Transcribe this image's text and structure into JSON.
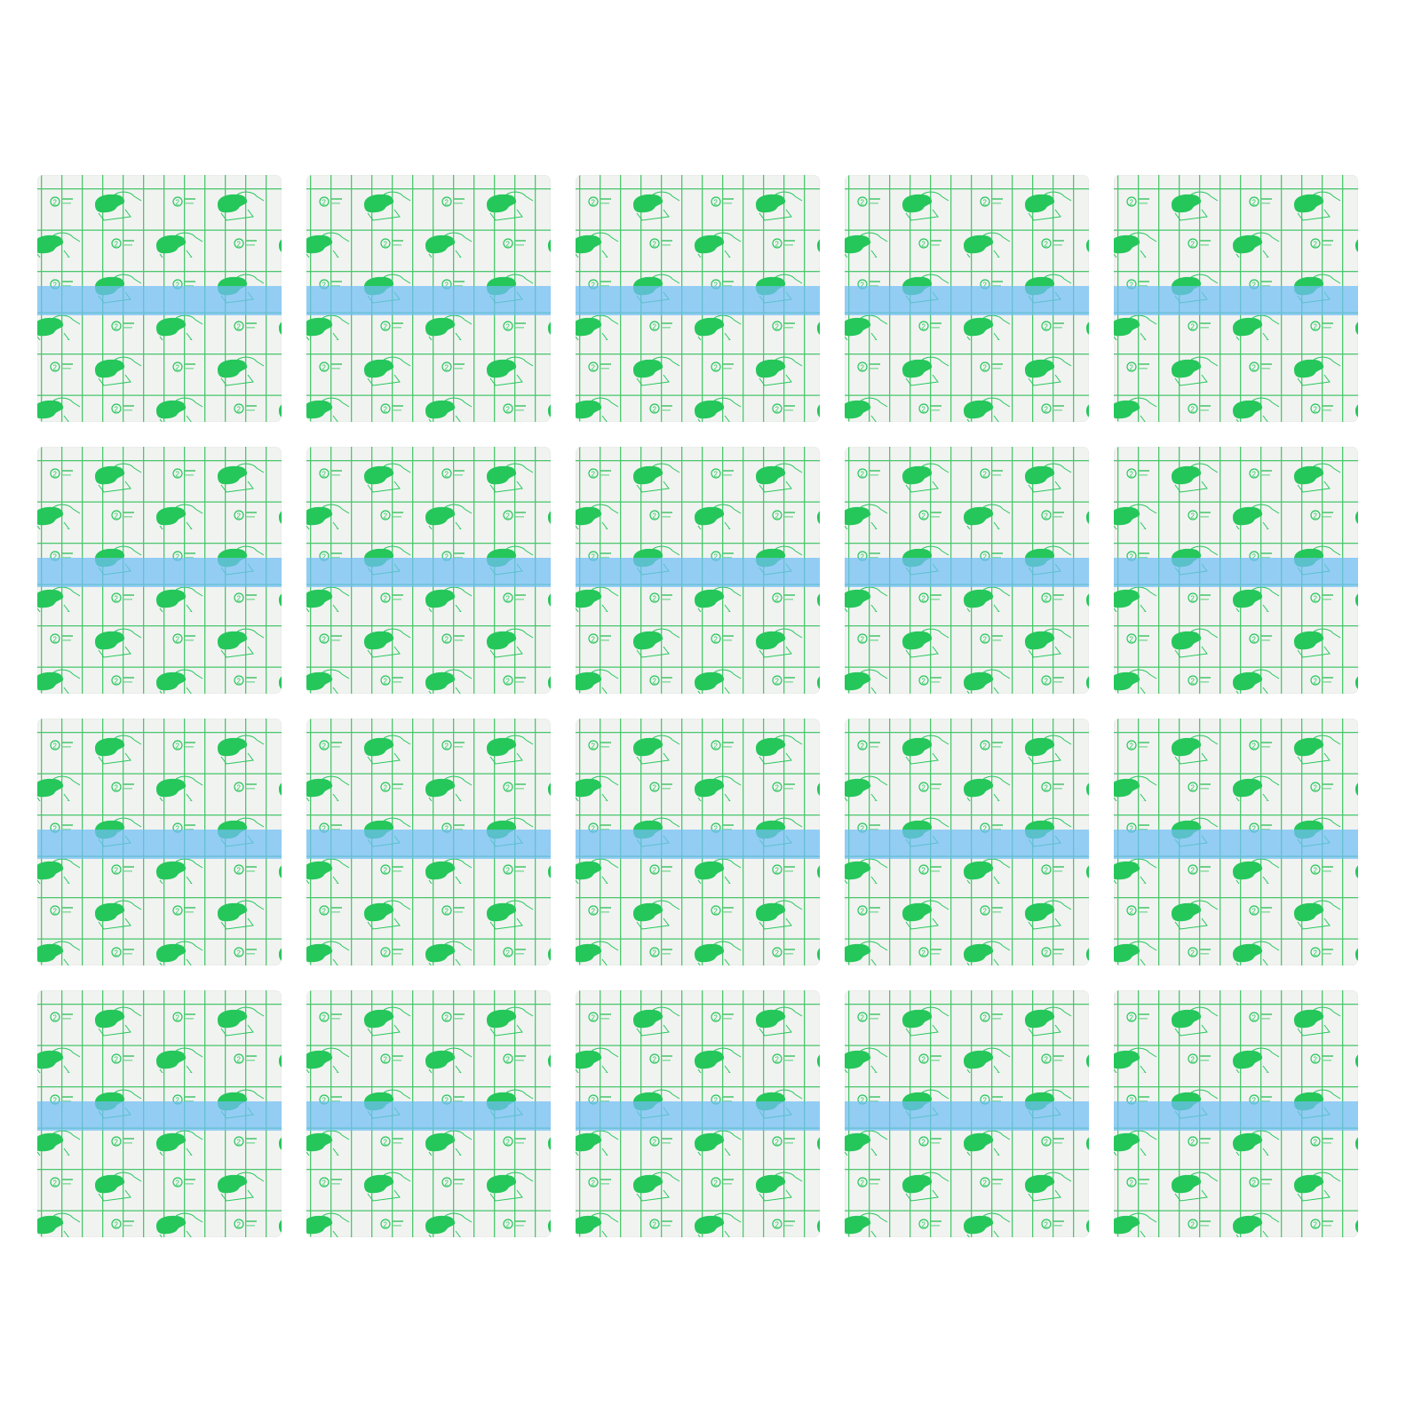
{
  "product_grid": {
    "rows": 4,
    "columns": 5,
    "count": 20
  },
  "colors": {
    "background": "#ffffff",
    "film": "#f1f3f1",
    "grid_lines": "#2fbf57",
    "print_icons": "#25c75a",
    "release_strip": "#6fbef5"
  },
  "icons": [
    "hand-pressing-pad-icon",
    "numbered-circle-icon"
  ]
}
